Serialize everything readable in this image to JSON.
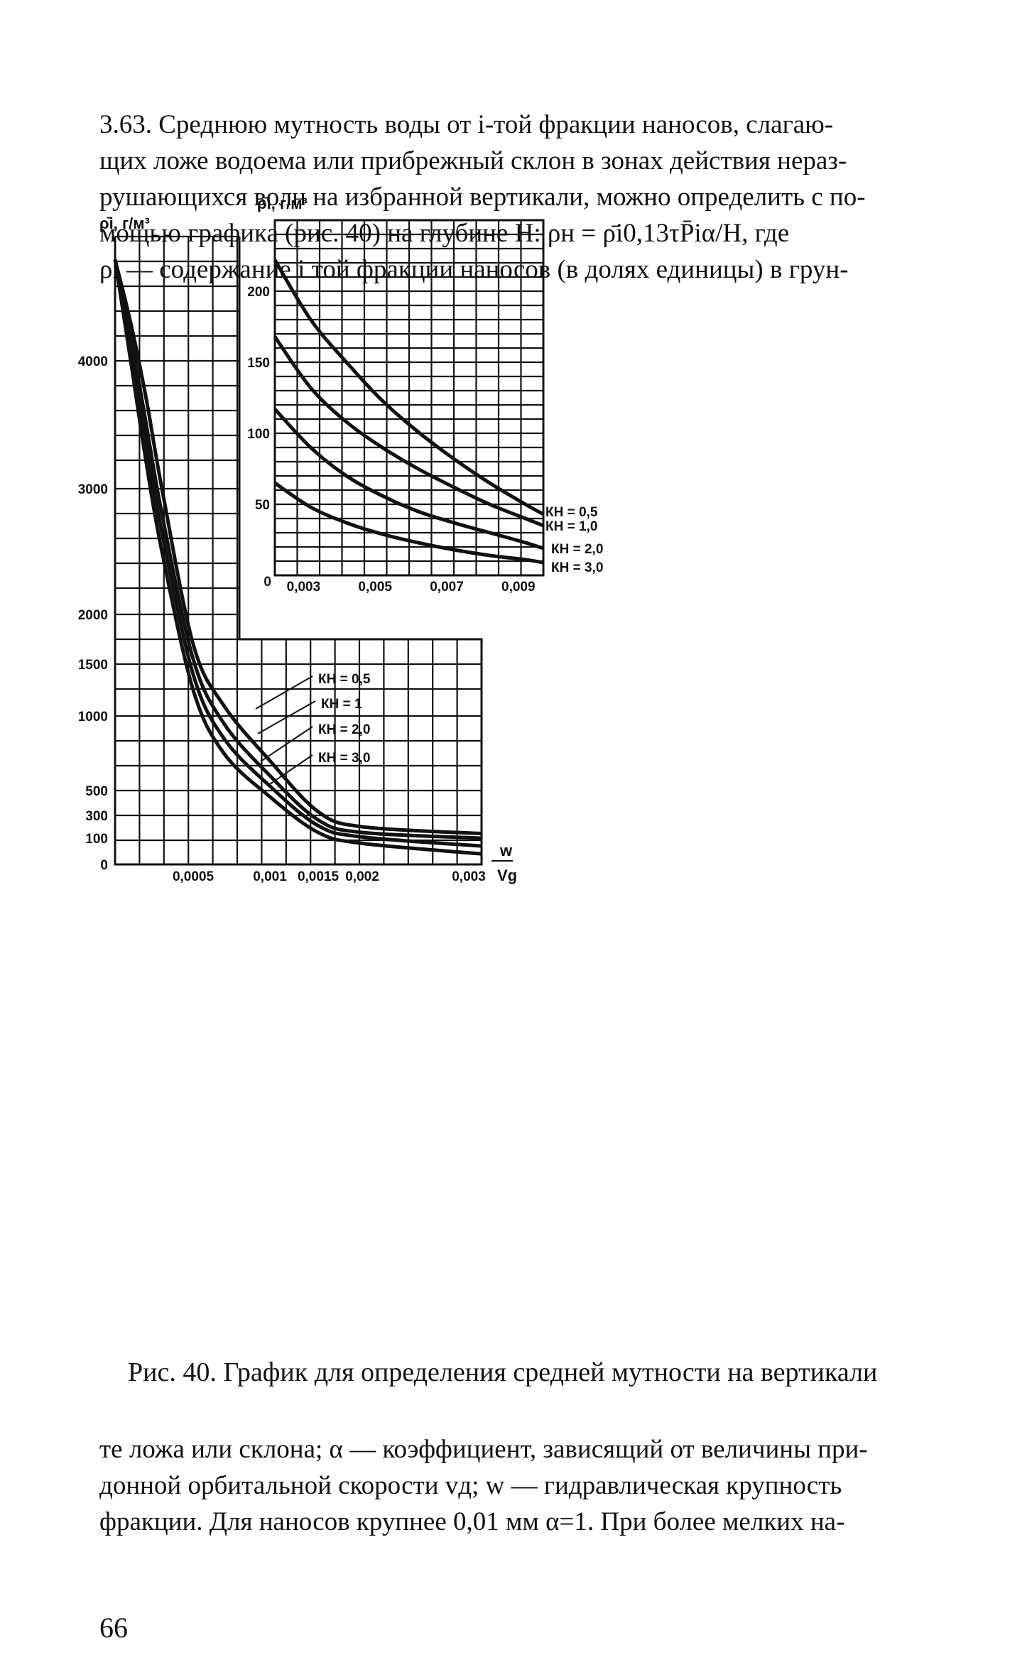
{
  "top_text": {
    "lines": [
      "3.63. Среднюю мутность воды от i-той фракции наносов, слагаю-",
      "щих ложе водоема или прибрежный склон в зонах действия нераз-",
      "рушающихся волн на избранной вертикали, можно определить с по-",
      "мощью графика (рис. 40) на глубине H: ρн = ρ̄i0,13τP̄iα/H, где",
      "ρi — содержание i той фракции наносов (в долях единицы) в грун-"
    ]
  },
  "caption": "Рис. 40. График для определения средней мутности на вертикали",
  "bottom_text": {
    "lines": [
      "те ложа или склона; α — коэффициент, зависящий от величины при-",
      "донной орбитальной скорости vд; w — гидравлическая крупность",
      "фракции. Для наносов крупнее 0,01 мм α=1. При более мелких на-"
    ]
  },
  "page_number": "66",
  "chart_data": [
    {
      "type": "line",
      "id": "main",
      "ylabel": "ρ̄i, г/м³",
      "xlabel": "w/Vg",
      "x_ticks": [
        "0,0005",
        "0,001",
        "0,0015",
        "0,002",
        "0,003"
      ],
      "y_ticks": [
        "4000",
        "3000",
        "2000",
        "1500",
        "1000",
        "500",
        "300",
        "100",
        "0"
      ],
      "y_scale": "nonlinear (0, 100, 300, 500, 1000, 1500, 2000, 3000, 4000)",
      "series": [
        {
          "name": "КН = 0,5",
          "x": [
            0,
            0.0001,
            0.0002,
            0.0003,
            0.0005,
            0.0007,
            0.001,
            0.0015,
            0.002,
            0.003
          ],
          "y": [
            4800,
            4300,
            3700,
            3000,
            1700,
            1100,
            700,
            330,
            200,
            140
          ]
        },
        {
          "name": "КН = 1",
          "x": [
            0,
            0.0001,
            0.0002,
            0.0003,
            0.0005,
            0.0007,
            0.001,
            0.0015,
            0.002,
            0.003
          ],
          "y": [
            4800,
            4200,
            3500,
            2800,
            1550,
            950,
            600,
            260,
            150,
            100
          ]
        },
        {
          "name": "КН = 2,0",
          "x": [
            0,
            0.0001,
            0.0002,
            0.0003,
            0.0005,
            0.0007,
            0.001,
            0.0015,
            0.002,
            0.003
          ],
          "y": [
            4800,
            4100,
            3350,
            2650,
            1400,
            850,
            530,
            210,
            110,
            70
          ]
        },
        {
          "name": "КН = 3,0",
          "x": [
            0,
            0.0001,
            0.0002,
            0.0003,
            0.0005,
            0.0007,
            0.001,
            0.0015,
            0.002,
            0.003
          ],
          "y": [
            4800,
            4000,
            3200,
            2500,
            1250,
            750,
            450,
            150,
            80,
            40
          ]
        }
      ]
    },
    {
      "type": "line",
      "id": "inset",
      "ylabel": "ρ̄i, г/м³",
      "x_ticks": [
        "0,003",
        "0,005",
        "0,007",
        "0,009"
      ],
      "y_ticks": [
        "200",
        "150",
        "100",
        "50",
        "0"
      ],
      "xlim": [
        0.002,
        0.0095
      ],
      "ylim": [
        0,
        250
      ],
      "series": [
        {
          "name": "КН = 0,5",
          "x": [
            0.002,
            0.003,
            0.004,
            0.005,
            0.006,
            0.007,
            0.008,
            0.009,
            0.0095
          ],
          "y": [
            222,
            180,
            150,
            123,
            101,
            82,
            65,
            50,
            43
          ]
        },
        {
          "name": "КН = 1,0",
          "x": [
            0.002,
            0.003,
            0.004,
            0.005,
            0.006,
            0.007,
            0.008,
            0.009,
            0.0095
          ],
          "y": [
            168,
            132,
            108,
            90,
            75,
            62,
            50,
            40,
            35
          ]
        },
        {
          "name": "КН = 2,0",
          "x": [
            0.002,
            0.003,
            0.004,
            0.005,
            0.006,
            0.007,
            0.008,
            0.009,
            0.0095
          ],
          "y": [
            117,
            90,
            70,
            56,
            45,
            37,
            30,
            23,
            19
          ]
        },
        {
          "name": "КН = 3,0",
          "x": [
            0.002,
            0.003,
            0.004,
            0.005,
            0.006,
            0.007,
            0.008,
            0.009,
            0.0095
          ],
          "y": [
            65,
            48,
            37,
            29,
            23,
            18,
            14,
            11,
            9
          ]
        }
      ]
    }
  ]
}
